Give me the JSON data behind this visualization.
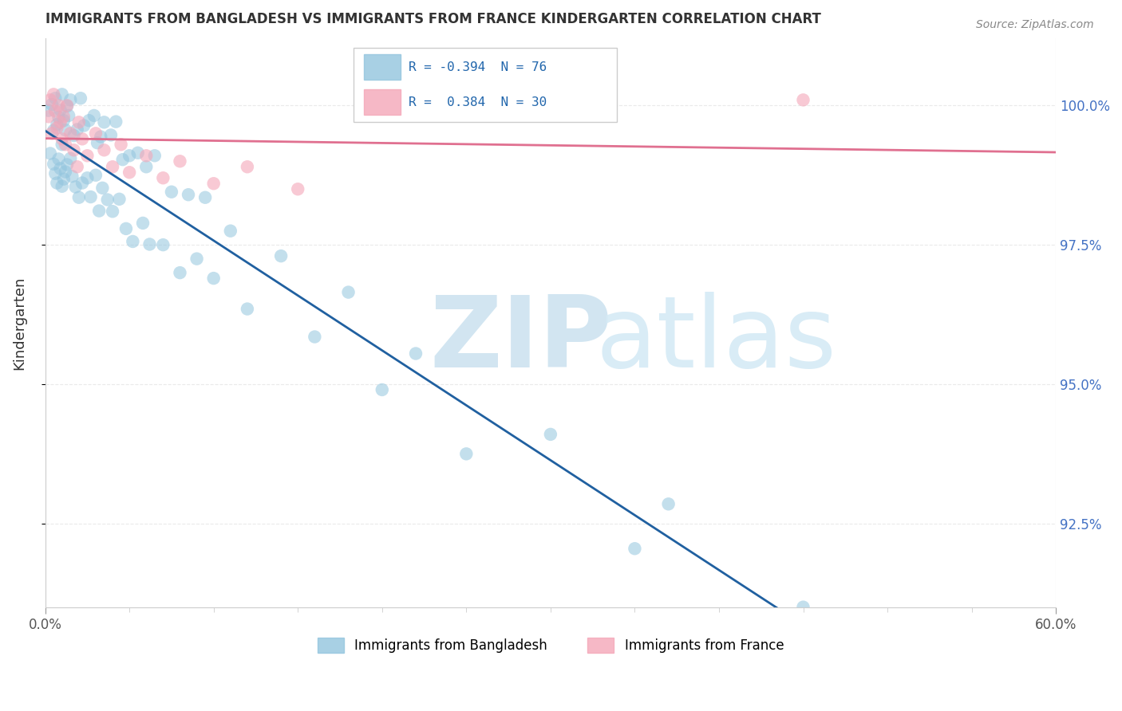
{
  "title": "IMMIGRANTS FROM BANGLADESH VS IMMIGRANTS FROM FRANCE KINDERGARTEN CORRELATION CHART",
  "source": "Source: ZipAtlas.com",
  "xlabel_blue": "Immigrants from Bangladesh",
  "xlabel_pink": "Immigrants from France",
  "ylabel": "Kindergarten",
  "xlim": [
    0.0,
    60.0
  ],
  "ylim": [
    91.0,
    101.2
  ],
  "yticks": [
    92.5,
    95.0,
    97.5,
    100.0
  ],
  "R_blue": -0.394,
  "N_blue": 76,
  "R_pink": 0.384,
  "N_pink": 30,
  "blue_color": "#92c5de",
  "pink_color": "#f4a6b8",
  "blue_line_color": "#2060a0",
  "pink_line_color": "#e07090",
  "dash_color": "#a0c8e8",
  "watermark_zip": "#c8dff0",
  "watermark_atlas": "#c8dff0",
  "legend_text_color": "#2166ac",
  "legend_border_color": "#cccccc",
  "right_tick_color": "#4472c4",
  "title_color": "#333333",
  "source_color": "#888888",
  "ylabel_color": "#333333",
  "grid_color": "#dddddd",
  "spine_color": "#cccccc"
}
